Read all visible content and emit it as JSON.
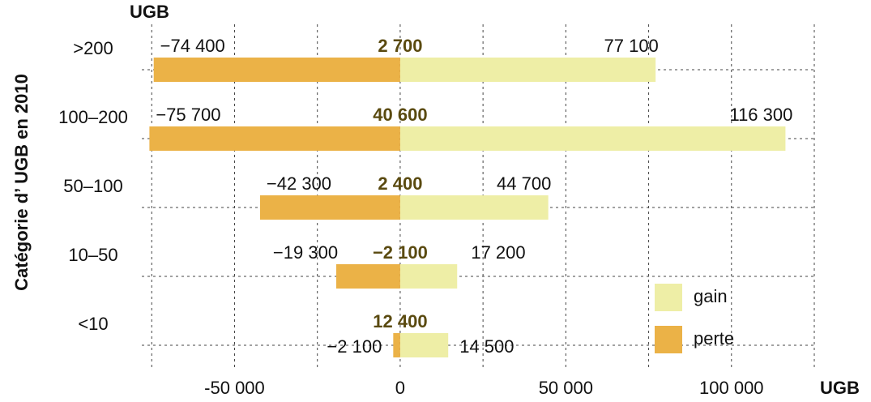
{
  "chart_data": {
    "type": "diverging-bar",
    "y_axis_label": "Catégorie d’ UGB en 2010",
    "top_unit_label": "UGB",
    "x_axis_label": "UGB",
    "categories": [
      ">200",
      "100–200",
      "50–100",
      "10–50",
      "<10"
    ],
    "series": [
      {
        "name": "gain",
        "color": "#eeeea6",
        "values": [
          77100,
          116300,
          44700,
          17200,
          14500
        ],
        "value_labels": [
          "77 100",
          "116 300",
          "44 700",
          "17 200",
          "14 500"
        ]
      },
      {
        "name": "perte",
        "color": "#ebb247",
        "values": [
          -74400,
          -75700,
          -42300,
          -19300,
          -2100
        ],
        "value_labels": [
          "−74 400",
          "−75 700",
          "−42 300",
          "−19 300",
          "−2 100"
        ]
      }
    ],
    "net": {
      "color": "#5a4a10",
      "values": [
        2700,
        40600,
        2400,
        -2100,
        12400
      ],
      "value_labels": [
        "2 700",
        "40 600",
        "2 400",
        "−2 100",
        "12 400"
      ]
    },
    "xlim": [
      -78000,
      125000
    ],
    "xticks": [
      {
        "value": -50000,
        "label": "-50 000"
      },
      0,
      {
        "value": 50000,
        "label": "50 000"
      },
      {
        "value": 100000,
        "label": "100 000"
      }
    ],
    "xgrid": [
      -75000,
      -25000,
      25000,
      75000,
      125000
    ],
    "grid": true,
    "legend": "lower right"
  }
}
